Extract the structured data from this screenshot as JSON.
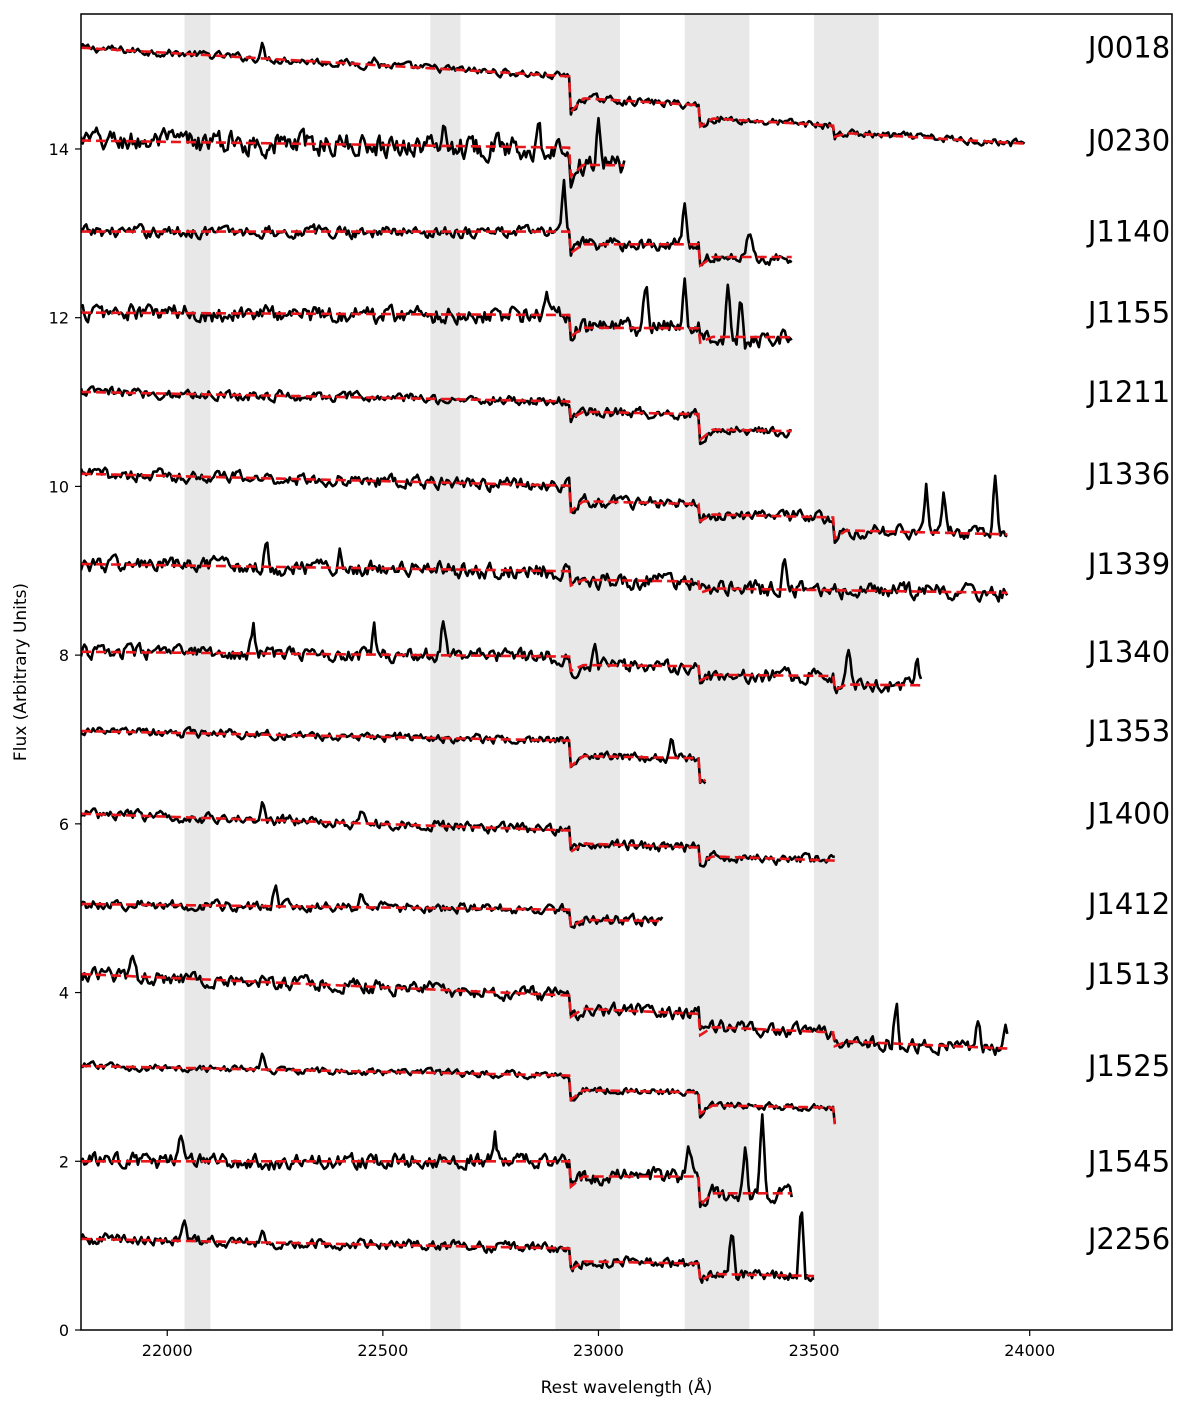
{
  "chart_data": {
    "type": "line",
    "title": "",
    "xlabel": "Rest wavelength (Å)",
    "ylabel": "Flux (Arbitrary Units)",
    "xlim": [
      21800,
      24330
    ],
    "ylim": [
      0,
      15.6
    ],
    "xticks": [
      22000,
      22500,
      23000,
      23500,
      24000
    ],
    "yticks": [
      0,
      2,
      4,
      6,
      8,
      10,
      12,
      14
    ],
    "grid": false,
    "legend": "none",
    "colors": {
      "observed": "#000000",
      "model": "#e8161b",
      "shaded_band": "#e8e8e8"
    },
    "line_styles": {
      "observed": "solid",
      "model": "dashed"
    },
    "shaded_bands": [
      [
        22040,
        22100
      ],
      [
        22610,
        22680
      ],
      [
        22900,
        23050
      ],
      [
        23200,
        23350
      ],
      [
        23500,
        23650
      ]
    ],
    "series": [
      {
        "name": "J0018",
        "offset": 15.2,
        "x_end": 23990,
        "tilt": -0.6,
        "noise": 0.045,
        "spikes": [
          [
            22220,
            0.15
          ],
          [
            22480,
            0.1
          ]
        ],
        "breaks": [
          [
            22935,
            0.25
          ],
          [
            23235,
            0.15
          ],
          [
            23545,
            0.08
          ]
        ]
      },
      {
        "name": "J0230",
        "offset": 14.1,
        "x_end": 23060,
        "tilt": -0.15,
        "noise": 0.13,
        "spikes": [
          [
            23000,
            0.65
          ],
          [
            22860,
            0.4
          ],
          [
            22640,
            0.3
          ]
        ],
        "breaks": [
          [
            22935,
            0.2
          ]
        ]
      },
      {
        "name": "J1140",
        "offset": 13.02,
        "x_end": 23450,
        "tilt": 0.0,
        "noise": 0.07,
        "spikes": [
          [
            22920,
            0.55
          ],
          [
            23200,
            0.5
          ],
          [
            23350,
            0.35
          ]
        ],
        "breaks": [
          [
            22935,
            0.15
          ],
          [
            23235,
            0.15
          ]
        ]
      },
      {
        "name": "J1155",
        "offset": 12.06,
        "x_end": 23450,
        "tilt": -0.05,
        "noise": 0.1,
        "spikes": [
          [
            22880,
            0.35
          ],
          [
            23110,
            0.5
          ],
          [
            23200,
            0.55
          ],
          [
            23330,
            0.6
          ],
          [
            23300,
            0.55
          ]
        ],
        "breaks": [
          [
            22935,
            0.15
          ],
          [
            23235,
            0.1
          ]
        ]
      },
      {
        "name": "J1211",
        "offset": 11.12,
        "x_end": 23450,
        "tilt": -0.2,
        "noise": 0.06,
        "spikes": [],
        "breaks": [
          [
            22935,
            0.12
          ],
          [
            23235,
            0.18
          ]
        ]
      },
      {
        "name": "J1336",
        "offset": 10.15,
        "x_end": 23950,
        "tilt": -0.25,
        "noise": 0.07,
        "spikes": [
          [
            23760,
            0.55
          ],
          [
            23800,
            0.45
          ],
          [
            23920,
            0.7
          ]
        ],
        "breaks": [
          [
            22935,
            0.18
          ],
          [
            23235,
            0.12
          ],
          [
            23545,
            0.15
          ]
        ]
      },
      {
        "name": "J1339",
        "offset": 9.08,
        "x_end": 23950,
        "tilt": -0.15,
        "noise": 0.09,
        "spikes": [
          [
            22230,
            0.25
          ],
          [
            22400,
            0.25
          ],
          [
            23430,
            0.45
          ]
        ],
        "breaks": [
          [
            22935,
            0.1
          ],
          [
            23235,
            0.08
          ]
        ]
      },
      {
        "name": "J1340",
        "offset": 8.04,
        "x_end": 23750,
        "tilt": -0.1,
        "noise": 0.08,
        "spikes": [
          [
            22200,
            0.3
          ],
          [
            22480,
            0.3
          ],
          [
            22640,
            0.45
          ],
          [
            22990,
            0.35
          ],
          [
            23580,
            0.4
          ],
          [
            23740,
            0.35
          ]
        ],
        "breaks": [
          [
            22935,
            0.1
          ],
          [
            23235,
            0.1
          ],
          [
            23545,
            0.1
          ]
        ]
      },
      {
        "name": "J1353",
        "offset": 7.1,
        "x_end": 23250,
        "tilt": -0.2,
        "noise": 0.05,
        "spikes": [
          [
            23170,
            0.3
          ]
        ],
        "breaks": [
          [
            22935,
            0.18
          ],
          [
            23235,
            0.18
          ]
        ]
      },
      {
        "name": "J1400",
        "offset": 6.12,
        "x_end": 23550,
        "tilt": -0.35,
        "noise": 0.06,
        "spikes": [
          [
            22220,
            0.2
          ],
          [
            22450,
            0.15
          ]
        ],
        "breaks": [
          [
            22935,
            0.15
          ],
          [
            23235,
            0.1
          ]
        ]
      },
      {
        "name": "J1412",
        "offset": 5.05,
        "x_end": 23150,
        "tilt": -0.12,
        "noise": 0.06,
        "spikes": [
          [
            22250,
            0.3
          ],
          [
            22450,
            0.2
          ]
        ],
        "breaks": [
          [
            22935,
            0.12
          ]
        ]
      },
      {
        "name": "J1513",
        "offset": 4.22,
        "x_end": 23950,
        "tilt": -0.45,
        "noise": 0.08,
        "spikes": [
          [
            21920,
            0.2
          ],
          [
            23690,
            0.55
          ],
          [
            23880,
            0.35
          ],
          [
            23945,
            0.4
          ]
        ],
        "breaks": [
          [
            22935,
            0.15
          ],
          [
            23235,
            0.15
          ],
          [
            23545,
            0.1
          ]
        ]
      },
      {
        "name": "J1525",
        "offset": 3.13,
        "x_end": 23550,
        "tilt": -0.2,
        "noise": 0.04,
        "spikes": [
          [
            22220,
            0.15
          ]
        ],
        "breaks": [
          [
            22935,
            0.17
          ],
          [
            23235,
            0.15
          ],
          [
            23545,
            0.12
          ]
        ]
      },
      {
        "name": "J1545",
        "offset": 2.0,
        "x_end": 23450,
        "tilt": 0.0,
        "noise": 0.09,
        "spikes": [
          [
            22030,
            0.4
          ],
          [
            22760,
            0.3
          ],
          [
            23210,
            0.4
          ],
          [
            23380,
            0.9
          ],
          [
            23340,
            0.5
          ]
        ],
        "breaks": [
          [
            22935,
            0.18
          ],
          [
            23235,
            0.2
          ]
        ]
      },
      {
        "name": "J2256",
        "offset": 1.08,
        "x_end": 23500,
        "tilt": -0.2,
        "noise": 0.06,
        "spikes": [
          [
            22040,
            0.2
          ],
          [
            22220,
            0.2
          ],
          [
            23310,
            0.6
          ],
          [
            23470,
            0.9
          ]
        ],
        "breaks": [
          [
            22935,
            0.15
          ],
          [
            23235,
            0.12
          ]
        ]
      }
    ]
  }
}
